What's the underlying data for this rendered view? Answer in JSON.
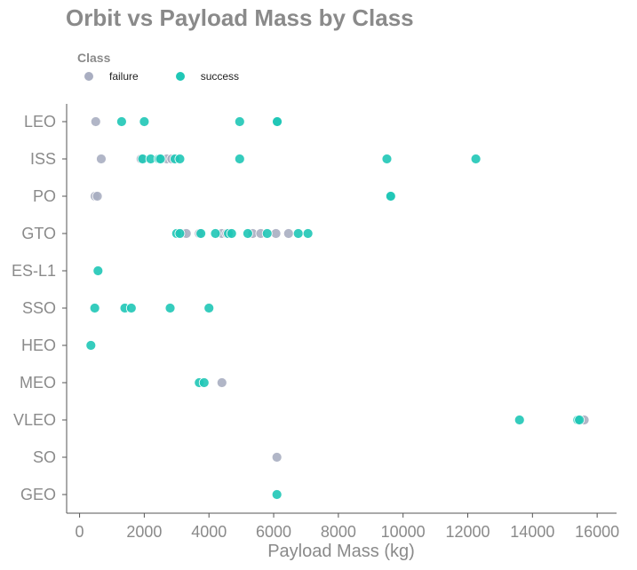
{
  "chart_data": {
    "type": "scatter",
    "title": "Orbit vs Payload Mass by Class",
    "xlabel": "Payload Mass (kg)",
    "ylabel": "",
    "xlim": [
      -400,
      16600
    ],
    "xticks": [
      0,
      2000,
      4000,
      6000,
      8000,
      10000,
      12000,
      14000,
      16000
    ],
    "categories": [
      "LEO",
      "ISS",
      "PO",
      "GTO",
      "ES-L1",
      "SSO",
      "HEO",
      "MEO",
      "VLEO",
      "SO",
      "GEO"
    ],
    "legend": {
      "title": "Class",
      "placement": "top-left"
    },
    "grid": false,
    "series": [
      {
        "name": "failure",
        "color": "#a9aec1",
        "points": [
          {
            "x": 500,
            "y": "LEO"
          },
          {
            "x": 670,
            "y": "ISS"
          },
          {
            "x": 1900,
            "y": "ISS"
          },
          {
            "x": 2700,
            "y": "ISS"
          },
          {
            "x": 2850,
            "y": "ISS"
          },
          {
            "x": 480,
            "y": "PO"
          },
          {
            "x": 550,
            "y": "PO"
          },
          {
            "x": 3170,
            "y": "GTO"
          },
          {
            "x": 3300,
            "y": "GTO"
          },
          {
            "x": 3700,
            "y": "GTO"
          },
          {
            "x": 4400,
            "y": "GTO"
          },
          {
            "x": 4550,
            "y": "GTO"
          },
          {
            "x": 5350,
            "y": "GTO"
          },
          {
            "x": 5600,
            "y": "GTO"
          },
          {
            "x": 6070,
            "y": "GTO"
          },
          {
            "x": 6460,
            "y": "GTO"
          },
          {
            "x": 4400,
            "y": "MEO"
          },
          {
            "x": 15600,
            "y": "VLEO"
          },
          {
            "x": 6100,
            "y": "SO"
          }
        ]
      },
      {
        "name": "success",
        "color": "#1fc7b6",
        "points": [
          {
            "x": 1300,
            "y": "LEO"
          },
          {
            "x": 2000,
            "y": "LEO"
          },
          {
            "x": 4950,
            "y": "LEO"
          },
          {
            "x": 6100,
            "y": "LEO"
          },
          {
            "x": 6110,
            "y": "LEO"
          },
          {
            "x": 1950,
            "y": "ISS"
          },
          {
            "x": 2200,
            "y": "ISS"
          },
          {
            "x": 2450,
            "y": "ISS"
          },
          {
            "x": 2500,
            "y": "ISS"
          },
          {
            "x": 2950,
            "y": "ISS"
          },
          {
            "x": 3100,
            "y": "ISS"
          },
          {
            "x": 4950,
            "y": "ISS"
          },
          {
            "x": 9500,
            "y": "ISS"
          },
          {
            "x": 12250,
            "y": "ISS"
          },
          {
            "x": 9600,
            "y": "PO"
          },
          {
            "x": 9620,
            "y": "PO"
          },
          {
            "x": 3000,
            "y": "GTO"
          },
          {
            "x": 3100,
            "y": "GTO"
          },
          {
            "x": 3750,
            "y": "GTO"
          },
          {
            "x": 4200,
            "y": "GTO"
          },
          {
            "x": 4600,
            "y": "GTO"
          },
          {
            "x": 4700,
            "y": "GTO"
          },
          {
            "x": 5200,
            "y": "GTO"
          },
          {
            "x": 5800,
            "y": "GTO"
          },
          {
            "x": 6760,
            "y": "GTO"
          },
          {
            "x": 7060,
            "y": "GTO"
          },
          {
            "x": 570,
            "y": "ES-L1"
          },
          {
            "x": 470,
            "y": "SSO"
          },
          {
            "x": 1400,
            "y": "SSO"
          },
          {
            "x": 1600,
            "y": "SSO"
          },
          {
            "x": 2800,
            "y": "SSO"
          },
          {
            "x": 4000,
            "y": "SSO"
          },
          {
            "x": 350,
            "y": "HEO"
          },
          {
            "x": 3700,
            "y": "MEO"
          },
          {
            "x": 3850,
            "y": "MEO"
          },
          {
            "x": 13600,
            "y": "VLEO"
          },
          {
            "x": 15400,
            "y": "VLEO"
          },
          {
            "x": 15450,
            "y": "VLEO"
          },
          {
            "x": 6100,
            "y": "GEO"
          }
        ]
      }
    ]
  }
}
